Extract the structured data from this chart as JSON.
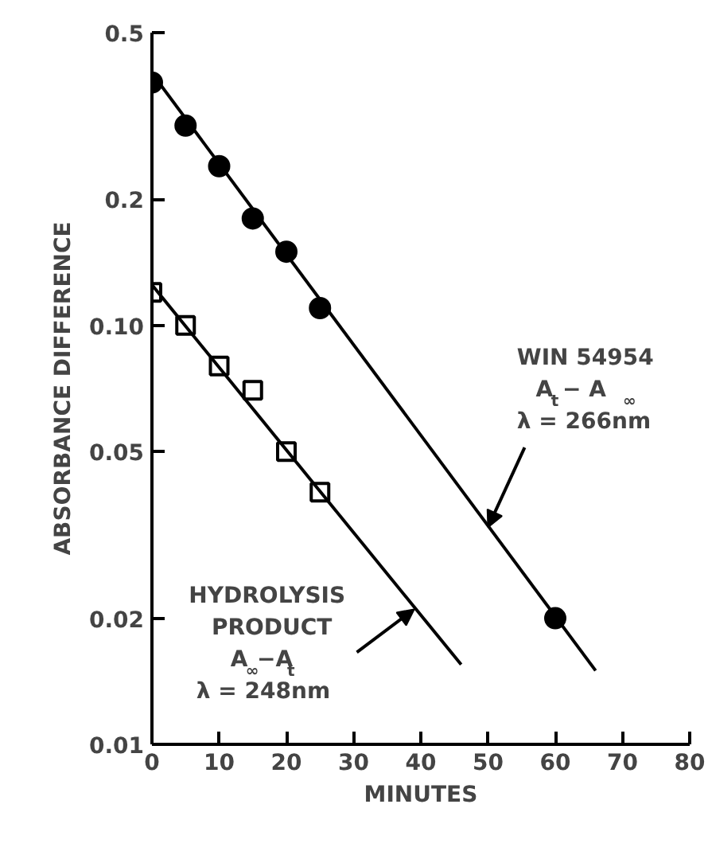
{
  "chart_data": {
    "type": "scatter",
    "xlabel": "MINUTES",
    "ylabel": "ABSORBANCE DIFFERENCE",
    "log": "y",
    "xlim": [
      0,
      80
    ],
    "ylim": [
      0.01,
      0.5
    ],
    "xticks": [
      0,
      10,
      20,
      30,
      40,
      50,
      60,
      70,
      80
    ],
    "yticks": [
      0.01,
      0.02,
      0.05,
      {
        "value": 0.1,
        "label": "0.10"
      },
      0.2,
      0.5
    ],
    "grid": false,
    "series": [
      {
        "marker": "circle",
        "color": "#000000",
        "x": [
          0,
          5,
          10,
          15,
          20,
          25,
          60
        ],
        "values": [
          0.38,
          0.3,
          0.24,
          0.18,
          0.15,
          0.11,
          0.02
        ]
      },
      {
        "marker": "square",
        "color": "#000000",
        "x": [
          0,
          5,
          10,
          15,
          20,
          25
        ],
        "values": [
          0.12,
          0.1,
          0.08,
          0.07,
          0.05,
          0.04
        ]
      },
      {
        "type": "line",
        "color": "#000000",
        "x": [
          0,
          66
        ],
        "values": [
          0.4,
          0.015
        ]
      },
      {
        "type": "line",
        "color": "#000000",
        "x": [
          0,
          46
        ],
        "values": [
          0.125,
          0.0155
        ]
      }
    ],
    "annotations": [
      {
        "text": "WIN 54954\nA$_{t}$ − A$_{∞}$\nλ = 266nm",
        "x": 50,
        "y": 0.033
      },
      {
        "text": "HYDROLYSIS\nPRODUCT\nA$_{∞}$−A$_{t}$\nλ = 248nm",
        "x": 39,
        "y": 0.021
      }
    ]
  }
}
